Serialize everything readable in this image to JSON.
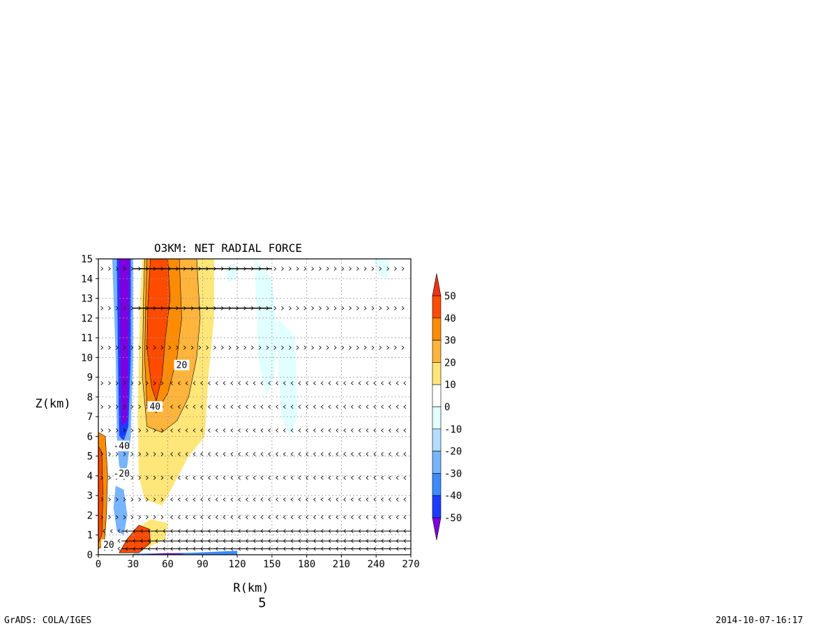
{
  "chart_data": {
    "type": "heatmap",
    "title": "O3KM: NET RADIAL FORCE",
    "xlabel": "R(km)",
    "ylabel": "Z(km)",
    "xlim": [
      0,
      270
    ],
    "ylim": [
      0,
      15
    ],
    "x_ticks": [
      0,
      30,
      60,
      90,
      120,
      150,
      180,
      210,
      240,
      270
    ],
    "y_ticks": [
      0,
      1,
      2,
      3,
      4,
      5,
      6,
      7,
      8,
      9,
      10,
      11,
      12,
      13,
      14,
      15
    ],
    "grid": true,
    "frame_number": "5",
    "contour_labels": [
      {
        "text": "20",
        "x": 72,
        "z": 9.6
      },
      {
        "text": "40",
        "x": 49,
        "z": 7.5
      },
      {
        "text": "-40",
        "x": 20,
        "z": 5.5
      },
      {
        "text": "-20",
        "x": 20,
        "z": 4.1
      },
      {
        "text": "20",
        "x": 9,
        "z": 0.5
      }
    ],
    "colorbar": {
      "levels": [
        -50,
        -40,
        -30,
        -20,
        -10,
        0,
        10,
        20,
        30,
        40,
        50
      ],
      "tick_labels": [
        "-50",
        "-40",
        "-30",
        "-20",
        "-10",
        "0",
        "10",
        "20",
        "30",
        "40",
        "50"
      ],
      "colors": [
        "#7d00e0",
        "#1e3cff",
        "#3c8cff",
        "#78b4ff",
        "#b4dcff",
        "#e1ffff",
        "#ffffff",
        "#ffe678",
        "#ffb43c",
        "#ff8c00",
        "#ff4b00",
        "#f03214"
      ]
    },
    "fields": [
      {
        "name": "outer-positive",
        "level": 10,
        "color": "#ffe678",
        "r": [
          [
            38,
            15
          ],
          [
            100,
            15
          ],
          [
            100,
            12
          ],
          [
            95,
            9
          ],
          [
            92,
            6
          ],
          [
            78,
            5
          ],
          [
            60,
            3
          ],
          [
            55,
            2.5
          ],
          [
            40,
            2.8
          ],
          [
            35,
            4
          ],
          [
            34,
            7
          ],
          [
            36,
            13
          ]
        ]
      },
      {
        "name": "outer-positive-2",
        "level": 20,
        "color": "#ffb43c",
        "r": [
          [
            40,
            15
          ],
          [
            85,
            15
          ],
          [
            88,
            12
          ],
          [
            85,
            10
          ],
          [
            78,
            8
          ],
          [
            68,
            6.8
          ],
          [
            55,
            6.2
          ],
          [
            42,
            6.5
          ],
          [
            38,
            9
          ],
          [
            39,
            13
          ]
        ]
      },
      {
        "name": "core-positive",
        "level": 30,
        "color": "#ff8c00",
        "r": [
          [
            42,
            15
          ],
          [
            70,
            15
          ],
          [
            72,
            12
          ],
          [
            68,
            10
          ],
          [
            60,
            8.2
          ],
          [
            50,
            7.2
          ],
          [
            42,
            7.6
          ],
          [
            40,
            10
          ],
          [
            41,
            13
          ]
        ]
      },
      {
        "name": "core-positive-2",
        "level": 40,
        "color": "#ff4b00",
        "r": [
          [
            45,
            15
          ],
          [
            60,
            15
          ],
          [
            62,
            13
          ],
          [
            58,
            11
          ],
          [
            55,
            9
          ],
          [
            50,
            7.8
          ],
          [
            46,
            8.5
          ],
          [
            42,
            10.5
          ],
          [
            43,
            13
          ]
        ]
      },
      {
        "name": "negative-column-outer",
        "level": -20,
        "color": "#78b4ff",
        "r": [
          [
            12,
            15
          ],
          [
            30,
            15
          ],
          [
            30,
            10
          ],
          [
            28,
            6
          ],
          [
            25,
            4.5
          ],
          [
            22,
            4
          ],
          [
            18,
            4.5
          ],
          [
            16,
            6
          ],
          [
            15,
            10
          ]
        ]
      },
      {
        "name": "negative-column",
        "level": -40,
        "color": "#1e3cff",
        "r": [
          [
            16,
            15
          ],
          [
            28,
            15
          ],
          [
            28,
            10
          ],
          [
            26,
            6.5
          ],
          [
            22,
            5.8
          ],
          [
            18,
            6
          ],
          [
            17,
            10
          ]
        ]
      },
      {
        "name": "negative-column-core",
        "level": -50,
        "color": "#7d00e0",
        "r": [
          [
            18,
            15
          ],
          [
            27,
            15
          ],
          [
            26,
            10
          ],
          [
            25,
            6.8
          ],
          [
            20,
            6.5
          ],
          [
            19,
            10
          ]
        ]
      },
      {
        "name": "left-edge-positive",
        "level": 20,
        "color": "#ff8c00",
        "r": [
          [
            0,
            6.2
          ],
          [
            6,
            6
          ],
          [
            8,
            4
          ],
          [
            7,
            2
          ],
          [
            5,
            0.5
          ],
          [
            0,
            0.3
          ]
        ]
      },
      {
        "name": "left-edge-positive-2",
        "level": 40,
        "color": "#ff4b00",
        "r": [
          [
            0,
            5.5
          ],
          [
            3,
            5.2
          ],
          [
            4,
            3
          ],
          [
            3,
            1
          ],
          [
            0,
            0.6
          ]
        ]
      },
      {
        "name": "low-negative",
        "level": -20,
        "color": "#78b4ff",
        "r": [
          [
            15,
            3.5
          ],
          [
            22,
            3.3
          ],
          [
            25,
            2
          ],
          [
            22,
            1
          ],
          [
            16,
            1.2
          ],
          [
            13,
            2.4
          ]
        ]
      },
      {
        "name": "low-lobe-outer",
        "level": 10,
        "color": "#ffe678",
        "r": [
          [
            20,
            0.3
          ],
          [
            30,
            1.2
          ],
          [
            45,
            1.8
          ],
          [
            60,
            1.6
          ],
          [
            58,
            0.8
          ],
          [
            40,
            0.3
          ]
        ]
      },
      {
        "name": "low-lobe-core",
        "level": 40,
        "color": "#ff4b00",
        "r": [
          [
            18,
            0.1
          ],
          [
            25,
            0.8
          ],
          [
            35,
            1.5
          ],
          [
            44,
            1.3
          ],
          [
            45,
            0.6
          ],
          [
            35,
            0.1
          ]
        ]
      },
      {
        "name": "surface-negative",
        "level": -30,
        "color": "#3c8cff",
        "r": [
          [
            30,
            0.05
          ],
          [
            80,
            0.1
          ],
          [
            120,
            0.2
          ],
          [
            120,
            0
          ],
          [
            30,
            0
          ]
        ]
      },
      {
        "name": "surface-negative-core",
        "level": -50,
        "color": "#7d00e0",
        "r": [
          [
            35,
            0
          ],
          [
            60,
            0.08
          ],
          [
            75,
            0.05
          ],
          [
            70,
            0
          ]
        ]
      },
      {
        "name": "cyan-patch-1",
        "level": -10,
        "color": "#e1ffff",
        "r": [
          [
            135,
            15
          ],
          [
            150,
            14
          ],
          [
            155,
            11
          ],
          [
            152,
            9
          ],
          [
            145,
            8
          ],
          [
            138,
            10
          ]
        ]
      },
      {
        "name": "cyan-patch-2",
        "level": -10,
        "color": "#e1ffff",
        "r": [
          [
            155,
            12
          ],
          [
            170,
            11
          ],
          [
            172,
            7
          ],
          [
            165,
            6
          ],
          [
            158,
            7
          ],
          [
            155,
            10
          ]
        ]
      },
      {
        "name": "cyan-patch-3",
        "level": -10,
        "color": "#e1ffff",
        "r": [
          [
            238,
            15
          ],
          [
            252,
            15
          ],
          [
            250,
            14
          ],
          [
            242,
            14.2
          ]
        ]
      },
      {
        "name": "cyan-patch-4",
        "level": -10,
        "color": "#e1ffff",
        "r": [
          [
            110,
            14.5
          ],
          [
            118,
            14.8
          ],
          [
            120,
            14
          ],
          [
            112,
            13.8
          ]
        ]
      }
    ],
    "vector_rows": [
      0.3,
      0.7,
      1.2,
      1.9,
      2.8,
      3.9,
      5.1,
      6.3,
      7.5,
      8.7,
      10.5,
      12.5,
      14.5
    ]
  },
  "footer": {
    "left": "GrADS: COLA/IGES",
    "right": "2014-10-07-16:17"
  }
}
